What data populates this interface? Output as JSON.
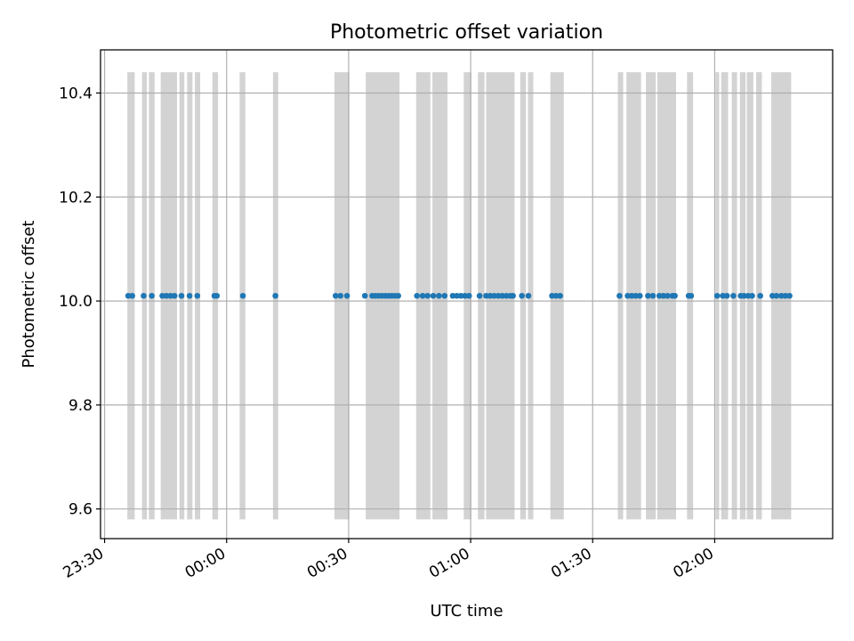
{
  "chart_data": {
    "type": "scatter",
    "title": "Photometric offset variation",
    "xlabel": "UTC time",
    "ylabel": "Photometric offset",
    "xlim": [
      "23:29",
      "02:29"
    ],
    "ylim": [
      9.543,
      10.483
    ],
    "x_ticks": [
      "23:30",
      "00:00",
      "00:30",
      "01:00",
      "01:30",
      "02:00"
    ],
    "y_ticks": [
      "9.6",
      "9.8",
      "10.0",
      "10.2",
      "10.4"
    ],
    "grid": true,
    "colors": {
      "points": "#1f77b4",
      "bands": "#d3d3d3",
      "grid": "#b0b0b0"
    },
    "bands": {
      "y_range": [
        9.58,
        10.44
      ],
      "x_ranges": [
        [
          "23:35.6",
          "23:37.4"
        ],
        [
          "23:39.2",
          "23:40.4"
        ],
        [
          "23:40.9",
          "23:42.3"
        ],
        [
          "23:43.8",
          "23:47.8"
        ],
        [
          "23:48.4",
          "23:49.6"
        ],
        [
          "23:50.3",
          "23:51.6"
        ],
        [
          "23:52.2",
          "23:53.5"
        ],
        [
          "23:56.5",
          "23:57.9"
        ],
        [
          "00:03.2",
          "00:04.6"
        ],
        [
          "00:11.4",
          "00:12.7"
        ],
        [
          "00:26.5",
          "00:30.2"
        ],
        [
          "00:34.2",
          "00:42.5"
        ],
        [
          "00:46.6",
          "00:50.1"
        ],
        [
          "00:50.6",
          "00:54.3"
        ],
        [
          "00:58.3",
          "01:00.2"
        ],
        [
          "01:01.8",
          "01:03.4"
        ],
        [
          "01:03.8",
          "01:10.8"
        ],
        [
          "01:12.2",
          "01:13.6"
        ],
        [
          "01:14.1",
          "01:15.4"
        ],
        [
          "01:19.6",
          "01:22.9"
        ],
        [
          "01:36.2",
          "01:37.5"
        ],
        [
          "01:38.3",
          "01:41.9"
        ],
        [
          "01:43.1",
          "01:45.5"
        ],
        [
          "01:45.9",
          "01:50.5"
        ],
        [
          "01:53.2",
          "01:54.7"
        ],
        [
          "02:00.2",
          "02:01.1"
        ],
        [
          "02:01.6",
          "02:03.3"
        ],
        [
          "02:04.2",
          "02:05.5"
        ],
        [
          "02:06.2",
          "02:07.6"
        ],
        [
          "02:07.9",
          "02:09.5"
        ],
        [
          "02:10.2",
          "02:11.6"
        ],
        [
          "02:13.9",
          "02:18.8"
        ]
      ]
    },
    "series": [
      {
        "y": 10.01,
        "x": [
          "23:35.8",
          "23:36.8",
          "23:39.6",
          "23:41.6",
          "23:44.2",
          "23:45.2",
          "23:46.2",
          "23:47.2",
          "23:48.9",
          "23:50.9",
          "23:52.8",
          "23:57.0",
          "23:57.6",
          "00:04.0",
          "00:12.0",
          "00:26.8",
          "00:28.0",
          "00:29.6",
          "00:34.0",
          "00:35.8",
          "00:36.6",
          "00:37.4",
          "00:38.2",
          "00:39.0",
          "00:39.8",
          "00:40.6",
          "00:41.4",
          "00:42.2",
          "00:46.8",
          "00:48.2",
          "00:49.4",
          "00:50.8",
          "00:52.2",
          "00:53.6",
          "00:55.6",
          "00:56.6",
          "00:57.6",
          "00:58.6",
          "00:59.6",
          "01:02.2",
          "01:03.8",
          "01:04.8",
          "01:05.8",
          "01:06.8",
          "01:07.8",
          "01:08.8",
          "01:09.8",
          "01:10.4",
          "01:12.6",
          "01:14.2",
          "01:20.0",
          "01:21.0",
          "01:22.0",
          "01:36.6",
          "01:38.6",
          "01:39.6",
          "01:40.6",
          "01:41.6",
          "01:43.6",
          "01:44.8",
          "01:46.4",
          "01:47.4",
          "01:48.4",
          "01:49.6",
          "01:50.2",
          "01:53.6",
          "01:54.2",
          "02:00.6",
          "02:02.0",
          "02:03.0",
          "02:04.6",
          "02:06.4",
          "02:07.2",
          "02:08.2",
          "02:09.2",
          "02:11.2",
          "02:14.2",
          "02:15.2",
          "02:16.4",
          "02:17.4",
          "02:18.4"
        ]
      }
    ]
  }
}
